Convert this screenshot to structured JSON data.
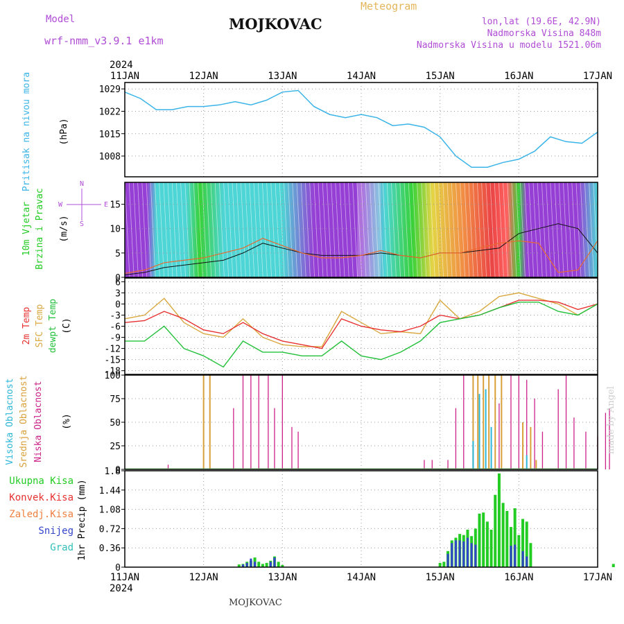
{
  "header": {
    "model_label": "Model",
    "model_name": "wrf-nmm_v3.9.1 e1km",
    "station": "MOJKOVAC",
    "product": "Meteogram",
    "lonlat": "lon,lat (19.6E, 42.9N)",
    "elevation": "Nadmorska Visina 848m",
    "model_elevation": "Nadmorska Visina u modelu 1521.06m"
  },
  "footer": {
    "station": "MOJKOVAC"
  },
  "watermark": "made by Angel",
  "colors": {
    "pressure": "#3ab4e8",
    "temp2m": "#e83030",
    "sfc_temp": "#d9a840",
    "dewpt": "#22c03a",
    "cloud_high": "#2bb6d8",
    "cloud_mid": "#d9a03a",
    "cloud_low": "#cc2288",
    "rain_total": "#22cc22",
    "rain_conv": "#e83030",
    "freezing": "#f08040",
    "snow": "#3344cc",
    "hail": "#33c0b8"
  },
  "time_axis": {
    "year": "2024",
    "ticks": [
      "11JAN",
      "12JAN",
      "13JAN",
      "14JAN",
      "15JAN",
      "16JAN",
      "17JAN"
    ]
  },
  "chart_data": [
    {
      "type": "line",
      "panel": "pressure",
      "ylabel": "Pritisak na nivou mora",
      "unit": "(hPa)",
      "yticks": [
        1029,
        1022,
        1015,
        1008
      ],
      "ylim": [
        1001.5,
        1031
      ],
      "x_days": [
        0,
        0.2,
        0.4,
        0.6,
        0.8,
        1.0,
        1.2,
        1.4,
        1.6,
        1.8,
        2.0,
        2.2,
        2.4,
        2.6,
        2.8,
        3.0,
        3.2,
        3.4,
        3.6,
        3.8,
        4.0,
        4.2,
        4.4,
        4.6,
        4.8,
        5.0,
        5.2,
        5.4,
        5.6,
        5.8,
        6.0
      ],
      "series": [
        {
          "name": "",
          "values": [
            1028,
            1026,
            1022.5,
            1022.5,
            1023.5,
            1023.5,
            1024,
            1025,
            1024,
            1025.5,
            1028,
            1028.5,
            1023.5,
            1021,
            1020,
            1021,
            1020,
            1017.5,
            1018,
            1017,
            1014,
            1008,
            1004.5,
            1004.5,
            1006,
            1007,
            1009.5,
            1014,
            1012.5,
            1012,
            1015.5
          ]
        }
      ],
      "grid": true
    },
    {
      "type": "line",
      "panel": "wind",
      "ylabel": "10m Vjetar",
      "ylabel2": "Brzina i Pravac",
      "unit": "(m/s)",
      "direction_legend": {
        "n": "N",
        "s": "S",
        "w": "W",
        "e": "E"
      },
      "yticks": [
        15,
        10,
        5,
        0
      ],
      "ylim": [
        0,
        19.5
      ],
      "x_days": [
        0,
        0.25,
        0.5,
        0.75,
        1.0,
        1.25,
        1.5,
        1.75,
        2.0,
        2.25,
        2.5,
        2.75,
        3.0,
        3.25,
        3.5,
        3.75,
        4.0,
        4.25,
        4.5,
        4.75,
        5.0,
        5.25,
        5.5,
        5.75,
        6.0
      ],
      "series": [
        {
          "name": "",
          "values": [
            0.5,
            1.0,
            2.0,
            2.5,
            3.0,
            3.5,
            5.0,
            7.0,
            6.0,
            5.0,
            4.5,
            4.5,
            4.5,
            5.0,
            4.5,
            4.0,
            5.0,
            5.0,
            5.5,
            6.0,
            9.0,
            10.0,
            11.0,
            10.0,
            5.0
          ]
        },
        {
          "name": "",
          "values": [
            0.8,
            1.5,
            3.0,
            3.5,
            4.0,
            5.0,
            6.0,
            8.0,
            6.5,
            5.0,
            4.0,
            4.0,
            4.5,
            5.5,
            4.5,
            4.0,
            5.0,
            5.0,
            6.0,
            7.0,
            7.5,
            7.0,
            1.0,
            1.5,
            7.5
          ]
        }
      ],
      "grid": true
    },
    {
      "type": "line",
      "panel": "temperature",
      "ylabels": [
        "2m Temp",
        "SFC Temp",
        "dewpt Temp"
      ],
      "unit": "(C)",
      "yticks": [
        6,
        3,
        0,
        -3,
        -6,
        -9,
        -12,
        -15,
        -18
      ],
      "ylim": [
        -19,
        7
      ],
      "x_days": [
        0,
        0.25,
        0.5,
        0.75,
        1.0,
        1.25,
        1.5,
        1.75,
        2.0,
        2.25,
        2.5,
        2.75,
        3.0,
        3.25,
        3.5,
        3.75,
        4.0,
        4.25,
        4.5,
        4.75,
        5.0,
        5.25,
        5.5,
        5.75,
        6.0
      ],
      "series": [
        {
          "name": "2m Temp",
          "values": [
            -5,
            -4.5,
            -2,
            -4,
            -7,
            -8,
            -5,
            -8,
            -10,
            -11,
            -12,
            -4,
            -6,
            -7,
            -7.5,
            -6,
            -3,
            -4,
            -3,
            -1,
            1,
            1,
            0.5,
            -1.5,
            0
          ]
        },
        {
          "name": "SFC Temp",
          "values": [
            -4,
            -3,
            1.5,
            -5,
            -8,
            -9,
            -4,
            -9,
            -11,
            -11.5,
            -11.5,
            -2,
            -5,
            -8,
            -7.5,
            -8,
            1,
            -4,
            -2,
            2,
            3,
            1.5,
            0,
            -3,
            0
          ]
        },
        {
          "name": "dewpt Temp",
          "values": [
            -10,
            -10,
            -6,
            -12,
            -14,
            -17,
            -10,
            -13,
            -13,
            -14,
            -14,
            -10,
            -14,
            -15,
            -13,
            -10,
            -5,
            -4,
            -3,
            -1,
            0.5,
            0.5,
            -2,
            -3,
            0
          ]
        }
      ],
      "grid": true
    },
    {
      "type": "bar",
      "panel": "clouds",
      "ylabels": [
        "Visoka Oblacnost",
        "Srednja Oblacnost",
        "Niska Oblacnost"
      ],
      "unit": "(%)",
      "yticks": [
        100,
        75,
        50,
        25,
        0
      ],
      "ylim": [
        0,
        100
      ],
      "series": [
        {
          "name": "Niska Oblacnost",
          "points": [
            [
              0.55,
              5
            ],
            [
              1.0,
              100
            ],
            [
              1.38,
              65
            ],
            [
              1.5,
              100
            ],
            [
              1.6,
              100
            ],
            [
              1.7,
              100
            ],
            [
              1.82,
              100
            ],
            [
              1.9,
              65
            ],
            [
              2.0,
              100
            ],
            [
              2.12,
              45
            ],
            [
              2.2,
              40
            ],
            [
              3.8,
              10
            ],
            [
              3.9,
              10
            ],
            [
              4.1,
              10
            ],
            [
              4.2,
              65
            ],
            [
              4.3,
              100
            ],
            [
              4.55,
              100
            ],
            [
              4.75,
              70
            ],
            [
              4.9,
              100
            ],
            [
              5.0,
              100
            ],
            [
              5.1,
              95
            ],
            [
              5.2,
              75
            ],
            [
              5.3,
              40
            ],
            [
              5.5,
              85
            ],
            [
              5.6,
              100
            ],
            [
              5.7,
              55
            ],
            [
              5.85,
              40
            ],
            [
              6.0,
              35
            ],
            [
              6.1,
              60
            ],
            [
              6.15,
              65
            ]
          ]
        },
        {
          "name": "Srednja Oblacnost",
          "points": [
            [
              1.0,
              100
            ],
            [
              1.08,
              100
            ],
            [
              4.42,
              100
            ],
            [
              4.48,
              100
            ],
            [
              4.55,
              100
            ],
            [
              4.62,
              100
            ],
            [
              4.7,
              100
            ],
            [
              4.78,
              100
            ],
            [
              5.05,
              50
            ],
            [
              5.15,
              45
            ],
            [
              5.22,
              10
            ]
          ]
        },
        {
          "name": "Visoka Oblacnost",
          "points": [
            [
              4.42,
              30
            ],
            [
              4.5,
              80
            ],
            [
              4.58,
              85
            ],
            [
              4.65,
              45
            ],
            [
              5.1,
              15
            ]
          ]
        }
      ],
      "grid": true
    },
    {
      "type": "bar",
      "panel": "precip",
      "ylabels": [
        "Ukupna Kisa",
        "Konvek.Kisa",
        "Zaledj.Kisa",
        "Snijeg",
        "Grad"
      ],
      "ylabel": "1hr Precip",
      "unit": "(mm)",
      "yticks": [
        1.8,
        1.44,
        1.08,
        0.72,
        0.36,
        0
      ],
      "ylim": [
        0,
        1.8
      ],
      "series": [
        {
          "name": "Ukupna Kisa",
          "points": [
            [
              1.45,
              0.05
            ],
            [
              1.5,
              0.06
            ],
            [
              1.55,
              0.1
            ],
            [
              1.6,
              0.12
            ],
            [
              1.65,
              0.18
            ],
            [
              1.7,
              0.1
            ],
            [
              1.75,
              0.06
            ],
            [
              1.8,
              0.08
            ],
            [
              1.85,
              0.12
            ],
            [
              1.9,
              0.2
            ],
            [
              1.95,
              0.1
            ],
            [
              2.0,
              0.04
            ],
            [
              4.0,
              0.08
            ],
            [
              4.05,
              0.1
            ],
            [
              4.1,
              0.3
            ],
            [
              4.15,
              0.5
            ],
            [
              4.2,
              0.55
            ],
            [
              4.25,
              0.62
            ],
            [
              4.3,
              0.6
            ],
            [
              4.35,
              0.7
            ],
            [
              4.4,
              0.58
            ],
            [
              4.45,
              0.72
            ],
            [
              4.5,
              1.0
            ],
            [
              4.55,
              1.02
            ],
            [
              4.6,
              0.85
            ],
            [
              4.65,
              0.7
            ],
            [
              4.7,
              1.35
            ],
            [
              4.75,
              1.75
            ],
            [
              4.8,
              1.2
            ],
            [
              4.85,
              1.05
            ],
            [
              4.9,
              0.75
            ],
            [
              4.95,
              1.1
            ],
            [
              5.0,
              0.6
            ],
            [
              5.05,
              0.9
            ],
            [
              5.1,
              0.85
            ],
            [
              5.15,
              0.45
            ],
            [
              6.2,
              0.06
            ]
          ]
        },
        {
          "name": "Snijeg",
          "points": [
            [
              1.5,
              0.05
            ],
            [
              1.55,
              0.08
            ],
            [
              1.6,
              0.16
            ],
            [
              1.65,
              0.1
            ],
            [
              1.85,
              0.1
            ],
            [
              1.9,
              0.18
            ],
            [
              4.1,
              0.25
            ],
            [
              4.15,
              0.45
            ],
            [
              4.2,
              0.5
            ],
            [
              4.25,
              0.5
            ],
            [
              4.3,
              0.48
            ],
            [
              4.35,
              0.55
            ],
            [
              4.4,
              0.45
            ],
            [
              4.45,
              0.42
            ],
            [
              4.9,
              0.4
            ],
            [
              4.95,
              0.42
            ],
            [
              5.05,
              0.3
            ],
            [
              5.1,
              0.2
            ]
          ]
        }
      ],
      "grid": true
    }
  ]
}
